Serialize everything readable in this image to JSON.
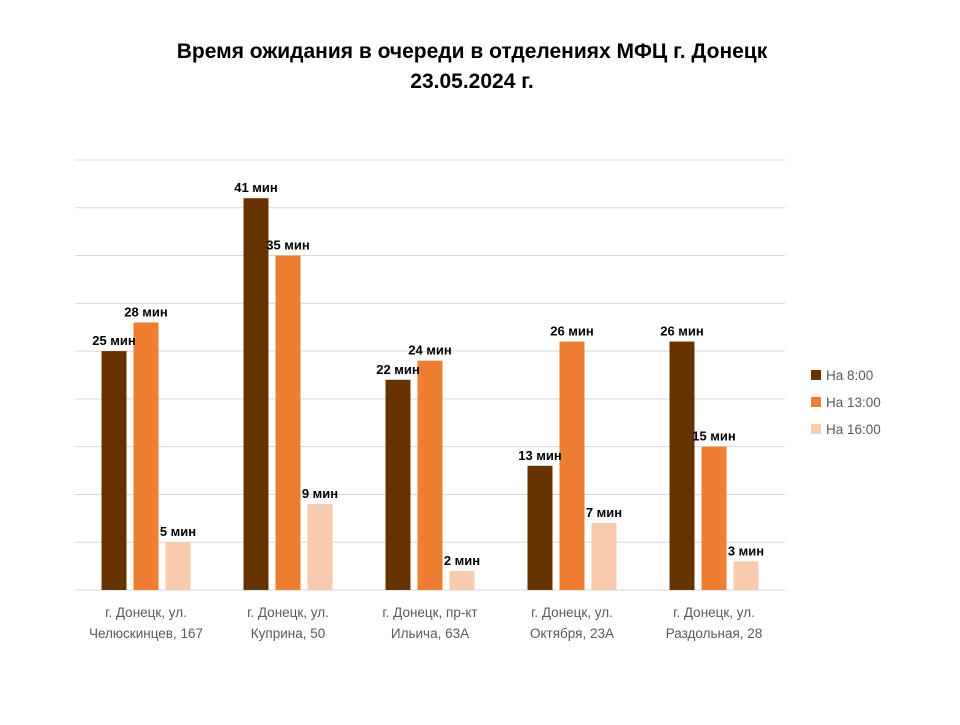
{
  "chart_data": {
    "type": "bar",
    "title_lines": [
      "Время ожидания в очереди в отделениях МФЦ г. Донецк",
      "23.05.2024 г."
    ],
    "categories": [
      [
        "г. Донецк, ул.",
        "Челюскинцев, 167"
      ],
      [
        "г. Донецк, ул.",
        "Куприна, 50"
      ],
      [
        "г. Донецк, пр-кт",
        "Ильича, 63А"
      ],
      [
        "г. Донецк, ул.",
        "Октября, 23А"
      ],
      [
        "г. Донецк, ул.",
        "Раздольная, 28"
      ]
    ],
    "series": [
      {
        "name": "На 8:00",
        "color": "#663300",
        "values": [
          25,
          41,
          22,
          13,
          26
        ],
        "labels": [
          "25 мин",
          "41 мин",
          "22 мин",
          "13 мин",
          "26 мин"
        ]
      },
      {
        "name": "На 13:00",
        "color": "#ED7D31",
        "values": [
          28,
          35,
          24,
          26,
          15
        ],
        "labels": [
          "28 мин",
          "35 мин",
          "24 мин",
          "26 мин",
          "15 мин"
        ]
      },
      {
        "name": "На 16:00",
        "color": "#F8CBAD",
        "values": [
          5,
          9,
          2,
          7,
          3
        ],
        "labels": [
          "5 мин",
          "9 мин",
          "2 мин",
          "7 мин",
          "3 мин"
        ]
      }
    ],
    "ylim": [
      0,
      45
    ],
    "y_gridline_step": 5,
    "y_tick_labels_shown": false,
    "grid": true,
    "legend_position": "right",
    "gridline_color": "#d9d9d9"
  }
}
